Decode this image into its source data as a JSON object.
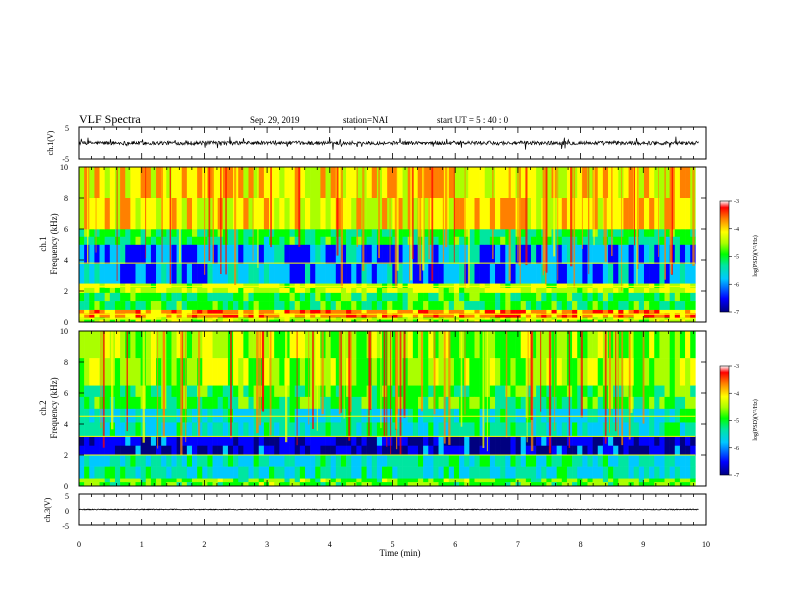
{
  "header": {
    "title": "VLF Spectra",
    "date": "Sep. 29, 2019",
    "station": "station=NAI",
    "start": "start  UT =   5 : 40 : 0"
  },
  "chart_data": [
    {
      "type": "line",
      "panel": "waveform-ch1",
      "ylabel": "ch.1(V)",
      "ylim": [
        -5,
        5
      ],
      "ytick_labels": [
        "5",
        "-5"
      ],
      "xlim": [
        0,
        10
      ],
      "baseline_V": 0,
      "amplitude_V": 0.6,
      "series": [
        {
          "trace_color": "#000000"
        }
      ]
    },
    {
      "type": "heatmap",
      "panel": "spectrogram-ch1",
      "ylabel_top": "ch.1",
      "ylabel": "Frequency (kHz)",
      "ylim": [
        0,
        10
      ],
      "ytick_labels": [
        "0",
        "2",
        "4",
        "6",
        "8",
        "10"
      ],
      "xlim": [
        0,
        9.83
      ],
      "colorbar": {
        "label": "log(PSD)(V²/Hz)",
        "range": [
          -7,
          -3
        ],
        "tick_labels": [
          "-3",
          "-4",
          "-5",
          "-6",
          "-7"
        ],
        "colormap": [
          "#000080",
          "#0000ff",
          "#00c8ff",
          "#00e6a0",
          "#00ff00",
          "#aaff00",
          "#ffff00",
          "#ff8000",
          "#ff0000",
          "#ffffff"
        ]
      },
      "bands_khz": [
        {
          "range": [
            0.0,
            0.3
          ],
          "log_psd": -4.6
        },
        {
          "range": [
            0.3,
            0.8
          ],
          "log_psd": -3.7
        },
        {
          "range": [
            0.8,
            1.9
          ],
          "log_psd": -5.1
        },
        {
          "range": [
            1.9,
            2.5
          ],
          "log_psd": -4.4
        },
        {
          "range": [
            2.5,
            5.0
          ],
          "log_psd": -6.0
        },
        {
          "range": [
            5.0,
            6.0
          ],
          "log_psd": -5.2
        },
        {
          "range": [
            6.0,
            10.0
          ],
          "log_psd": -4.1
        }
      ],
      "lines_khz": [
        0.2,
        0.5,
        2.3,
        3.8
      ]
    },
    {
      "type": "heatmap",
      "panel": "spectrogram-ch2",
      "ylabel_top": "ch.2",
      "ylabel": "Frequency (kHz)",
      "ylim": [
        0,
        10
      ],
      "ytick_labels": [
        "0",
        "2",
        "4",
        "6",
        "8",
        "10"
      ],
      "xlim": [
        0,
        9.83
      ],
      "colorbar": {
        "label": "log(PSD)(V²/Hz)",
        "range": [
          -7,
          -3
        ],
        "tick_labels": [
          "-3",
          "-4",
          "-5",
          "-6",
          "-7"
        ],
        "colormap": [
          "#000080",
          "#0000ff",
          "#00c8ff",
          "#00e6a0",
          "#00ff00",
          "#aaff00",
          "#ffff00",
          "#ff8000",
          "#ff0000",
          "#ffffff"
        ]
      },
      "bands_khz": [
        {
          "range": [
            0.0,
            0.5
          ],
          "log_psd": -4.8
        },
        {
          "range": [
            0.5,
            2.0
          ],
          "log_psd": -5.6
        },
        {
          "range": [
            2.0,
            3.2
          ],
          "log_psd": -6.5
        },
        {
          "range": [
            3.2,
            5.0
          ],
          "log_psd": -5.6
        },
        {
          "range": [
            5.0,
            6.5
          ],
          "log_psd": -5.0
        },
        {
          "range": [
            6.5,
            10.0
          ],
          "log_psd": -4.6
        }
      ],
      "lines_khz": [
        2.0,
        3.2,
        4.5
      ]
    },
    {
      "type": "line",
      "panel": "waveform-ch3",
      "ylabel": "ch.3(V)",
      "ylim": [
        -5,
        5
      ],
      "ytick_labels": [
        "5",
        "0",
        "-5"
      ],
      "xlim": [
        0,
        10
      ],
      "baseline_V": 0,
      "amplitude_V": 0.15,
      "series": [
        {
          "trace_color": "#000000"
        }
      ]
    }
  ],
  "xaxis": {
    "label": "Time (min)",
    "range": [
      0,
      10
    ],
    "ticks": [
      0,
      1,
      2,
      3,
      4,
      5,
      6,
      7,
      8,
      9,
      10
    ],
    "tick_labels": [
      "0",
      "1",
      "2",
      "3",
      "4",
      "5",
      "6",
      "7",
      "8",
      "9",
      "10"
    ]
  }
}
